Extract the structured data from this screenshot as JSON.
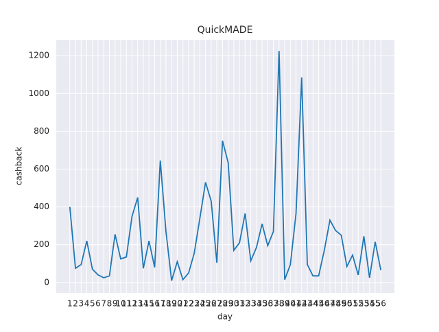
{
  "chart_data": {
    "type": "line",
    "title": "QuickMADE",
    "x_label": "day",
    "y_label": "cashback",
    "categories": [
      "1",
      "2",
      "3",
      "4",
      "5",
      "6",
      "7",
      "8",
      "9",
      "10",
      "11",
      "12",
      "13",
      "14",
      "15",
      "16",
      "17",
      "18",
      "19",
      "20",
      "21",
      "22",
      "23",
      "24",
      "25",
      "26",
      "27",
      "28",
      "29",
      "30",
      "31",
      "32",
      "33",
      "34",
      "35",
      "36",
      "37",
      "38",
      "39",
      "40",
      "41",
      "42",
      "43",
      "44",
      "45",
      "46",
      "47",
      "48",
      "49",
      "50",
      "51",
      "52",
      "53",
      "54",
      "55",
      "56"
    ],
    "series": [
      {
        "name": "cashback",
        "color": "#1f77b4",
        "values": [
          400,
          75,
          95,
          220,
          70,
          40,
          25,
          35,
          255,
          125,
          135,
          350,
          450,
          75,
          220,
          80,
          645,
          270,
          10,
          110,
          15,
          50,
          155,
          340,
          530,
          430,
          105,
          750,
          635,
          170,
          210,
          365,
          115,
          185,
          310,
          195,
          270,
          1225,
          15,
          95,
          365,
          1085,
          95,
          35,
          35,
          170,
          330,
          275,
          250,
          85,
          145,
          40,
          245,
          25,
          215,
          65
        ]
      }
    ],
    "ylim": [
      -55,
      1284
    ],
    "yticks": [
      0,
      200,
      400,
      600,
      800,
      1000,
      1200
    ],
    "grid": true
  }
}
